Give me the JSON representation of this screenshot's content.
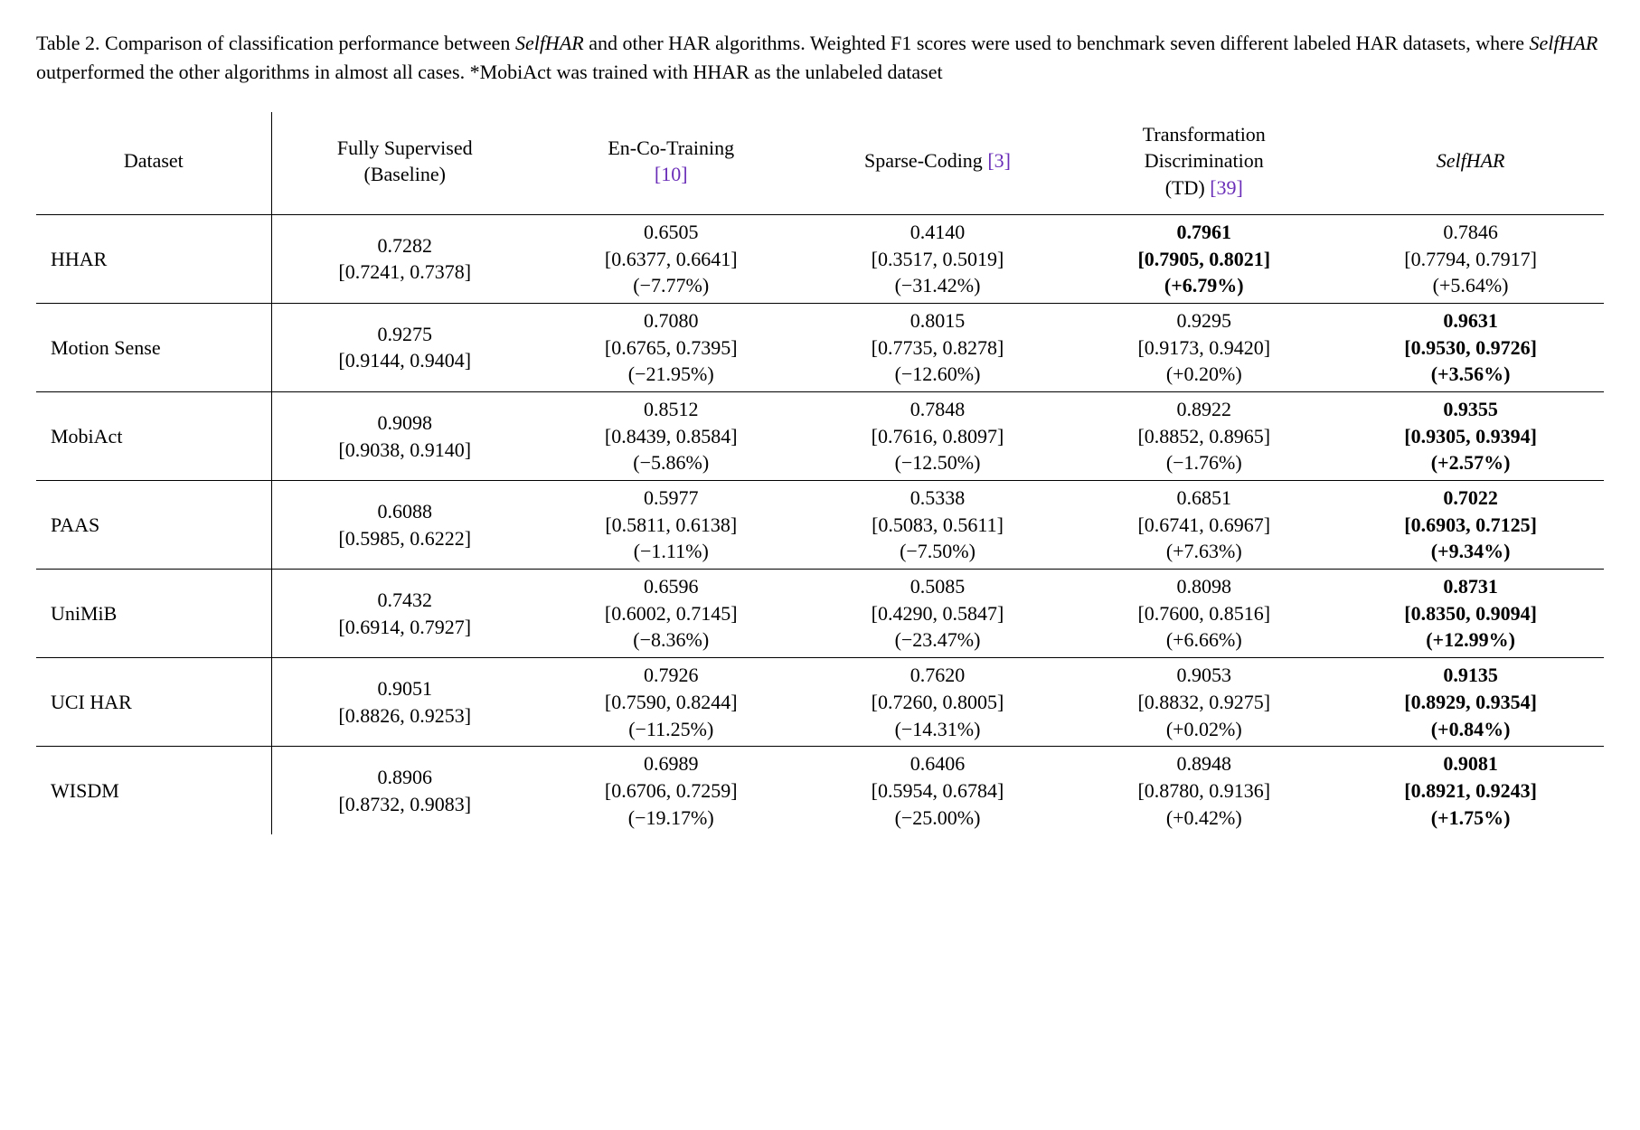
{
  "caption": {
    "prefix": "Table 2.  Comparison of classification performance between ",
    "selfhar": "SelfHAR",
    "mid1": " and other HAR algorithms. Weighted F1 scores were used to benchmark seven different labeled HAR datasets, where ",
    "mid2": " outperformed the other algorithms in almost all cases. *MobiAct was trained with HHAR as the unlabeled dataset"
  },
  "headers": {
    "dataset": "Dataset",
    "baseline_l1": "Fully Supervised",
    "baseline_l2": "(Baseline)",
    "enco_l1": "En-Co-Training",
    "enco_cite": "[10]",
    "sparse_l1": "Sparse-Coding ",
    "sparse_cite": "[3]",
    "td_l1": "Transformation",
    "td_l2": "Discrimination",
    "td_l3_pre": "(TD) ",
    "td_cite": "[39]",
    "selfhar": "SelfHAR"
  },
  "rows": [
    {
      "name": "HHAR",
      "baseline": {
        "val": "0.7282",
        "ci": "[0.7241, 0.7378]"
      },
      "enco": {
        "val": "0.6505",
        "ci": "[0.6377, 0.6641]",
        "delta": "(−7.77%)",
        "bold": false
      },
      "sparse": {
        "val": "0.4140",
        "ci": "[0.3517, 0.5019]",
        "delta": "(−31.42%)",
        "bold": false
      },
      "td": {
        "val": "0.7961",
        "ci": "[0.7905, 0.8021]",
        "delta": "(+6.79%)",
        "bold": true
      },
      "self": {
        "val": "0.7846",
        "ci": "[0.7794, 0.7917]",
        "delta": "(+5.64%)",
        "bold": false
      }
    },
    {
      "name": "Motion Sense",
      "baseline": {
        "val": "0.9275",
        "ci": "[0.9144, 0.9404]"
      },
      "enco": {
        "val": "0.7080",
        "ci": "[0.6765, 0.7395]",
        "delta": "(−21.95%)",
        "bold": false
      },
      "sparse": {
        "val": "0.8015",
        "ci": "[0.7735, 0.8278]",
        "delta": "(−12.60%)",
        "bold": false
      },
      "td": {
        "val": "0.9295",
        "ci": "[0.9173, 0.9420]",
        "delta": "(+0.20%)",
        "bold": false
      },
      "self": {
        "val": "0.9631",
        "ci": "[0.9530, 0.9726]",
        "delta": "(+3.56%)",
        "bold": true
      }
    },
    {
      "name": "MobiAct",
      "baseline": {
        "val": "0.9098",
        "ci": "[0.9038, 0.9140]"
      },
      "enco": {
        "val": "0.8512",
        "ci": "[0.8439, 0.8584]",
        "delta": "(−5.86%)",
        "bold": false
      },
      "sparse": {
        "val": "0.7848",
        "ci": "[0.7616, 0.8097]",
        "delta": "(−12.50%)",
        "bold": false
      },
      "td": {
        "val": "0.8922",
        "ci": "[0.8852, 0.8965]",
        "delta": "(−1.76%)",
        "bold": false
      },
      "self": {
        "val": "0.9355",
        "ci": "[0.9305, 0.9394]",
        "delta": "(+2.57%)",
        "bold": true
      }
    },
    {
      "name": "PAAS",
      "baseline": {
        "val": "0.6088",
        "ci": "[0.5985, 0.6222]"
      },
      "enco": {
        "val": "0.5977",
        "ci": "[0.5811, 0.6138]",
        "delta": "(−1.11%)",
        "bold": false
      },
      "sparse": {
        "val": "0.5338",
        "ci": "[0.5083, 0.5611]",
        "delta": "(−7.50%)",
        "bold": false
      },
      "td": {
        "val": "0.6851",
        "ci": "[0.6741, 0.6967]",
        "delta": "(+7.63%)",
        "bold": false
      },
      "self": {
        "val": "0.7022",
        "ci": "[0.6903, 0.7125]",
        "delta": "(+9.34%)",
        "bold": true
      }
    },
    {
      "name": "UniMiB",
      "baseline": {
        "val": "0.7432",
        "ci": "[0.6914, 0.7927]"
      },
      "enco": {
        "val": "0.6596",
        "ci": "[0.6002, 0.7145]",
        "delta": "(−8.36%)",
        "bold": false
      },
      "sparse": {
        "val": "0.5085",
        "ci": "[0.4290, 0.5847]",
        "delta": "(−23.47%)",
        "bold": false
      },
      "td": {
        "val": "0.8098",
        "ci": "[0.7600, 0.8516]",
        "delta": "(+6.66%)",
        "bold": false
      },
      "self": {
        "val": "0.8731",
        "ci": "[0.8350, 0.9094]",
        "delta": "(+12.99%)",
        "bold": true
      }
    },
    {
      "name": "UCI HAR",
      "baseline": {
        "val": "0.9051",
        "ci": "[0.8826, 0.9253]"
      },
      "enco": {
        "val": "0.7926",
        "ci": "[0.7590, 0.8244]",
        "delta": "(−11.25%)",
        "bold": false
      },
      "sparse": {
        "val": "0.7620",
        "ci": "[0.7260, 0.8005]",
        "delta": "(−14.31%)",
        "bold": false
      },
      "td": {
        "val": "0.9053",
        "ci": "[0.8832, 0.9275]",
        "delta": "(+0.02%)",
        "bold": false
      },
      "self": {
        "val": "0.9135",
        "ci": "[0.8929, 0.9354]",
        "delta": "(+0.84%)",
        "bold": true
      }
    },
    {
      "name": "WISDM",
      "baseline": {
        "val": "0.8906",
        "ci": "[0.8732, 0.9083]"
      },
      "enco": {
        "val": "0.6989",
        "ci": "[0.6706, 0.7259]",
        "delta": "(−19.17%)",
        "bold": false
      },
      "sparse": {
        "val": "0.6406",
        "ci": "[0.5954, 0.6784]",
        "delta": "(−25.00%)",
        "bold": false
      },
      "td": {
        "val": "0.8948",
        "ci": "[0.8780, 0.9136]",
        "delta": "(+0.42%)",
        "bold": false
      },
      "self": {
        "val": "0.9081",
        "ci": "[0.8921, 0.9243]",
        "delta": "(+1.75%)",
        "bold": true
      }
    }
  ]
}
